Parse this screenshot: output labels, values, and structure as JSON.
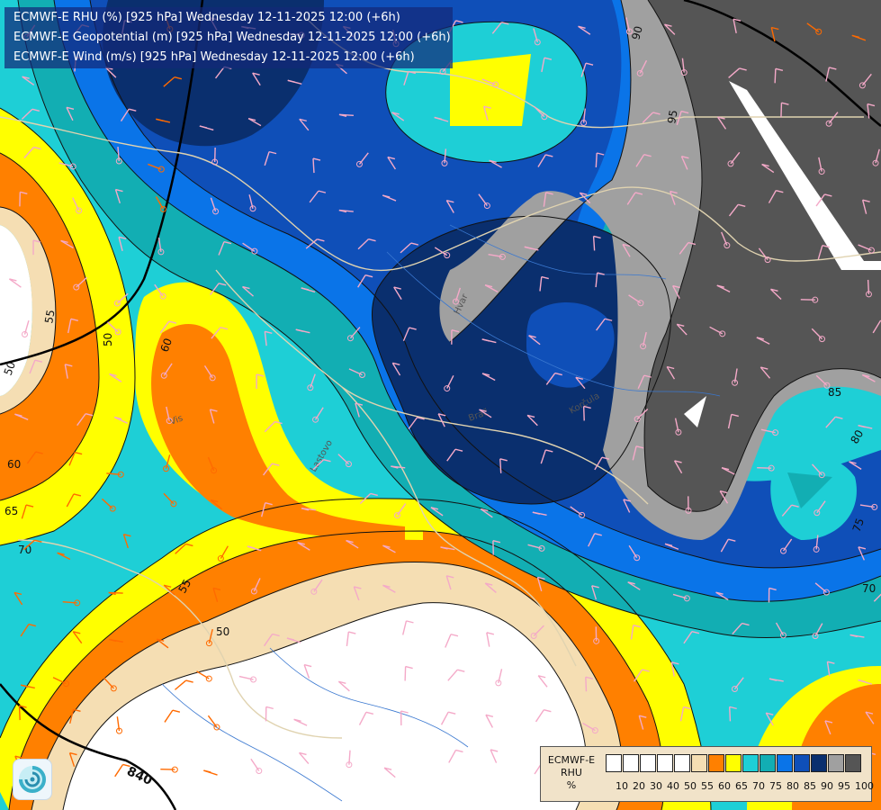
{
  "header": {
    "line1": "ECMWF-E RHU (%) [925 hPa] Wednesday 12-11-2025 12:00 (+6h)",
    "line2": "ECMWF-E Geopotential (m) [925 hPa] Wednesday 12-11-2025 12:00 (+6h)",
    "line3": "ECMWF-E Wind (m/s) [925 hPa] Wednesday 12-11-2025 12:00 (+6h)"
  },
  "legend": {
    "model": "ECMWF-E",
    "variable": "RHU",
    "unit": "%",
    "levels": [
      {
        "label": "10",
        "color": "#ffffff"
      },
      {
        "label": "20",
        "color": "#ffffff"
      },
      {
        "label": "30",
        "color": "#ffffff"
      },
      {
        "label": "40",
        "color": "#ffffff"
      },
      {
        "label": "50",
        "color": "#ffffff"
      },
      {
        "label": "55",
        "color": "#f5deb3"
      },
      {
        "label": "60",
        "color": "#ff8000"
      },
      {
        "label": "65",
        "color": "#ffff00"
      },
      {
        "label": "70",
        "color": "#1ecfd6"
      },
      {
        "label": "75",
        "color": "#12aeb3"
      },
      {
        "label": "80",
        "color": "#0a74e8"
      },
      {
        "label": "85",
        "color": "#0f4fb8"
      },
      {
        "label": "90",
        "color": "#0a2f6e"
      },
      {
        "label": "95",
        "color": "#a0a0a0"
      },
      {
        "label": "100",
        "color": "#555555"
      }
    ]
  },
  "map": {
    "contour_labels_rhu": [
      "55",
      "60",
      "50",
      "50",
      "60",
      "65",
      "70",
      "55",
      "50",
      "90",
      "95",
      "85",
      "80",
      "75",
      "70"
    ],
    "geopotential_labels": [
      "840"
    ],
    "place_labels": [
      "Hvar",
      "Korčula",
      "Vis",
      "Lastovo",
      "Brač"
    ]
  }
}
